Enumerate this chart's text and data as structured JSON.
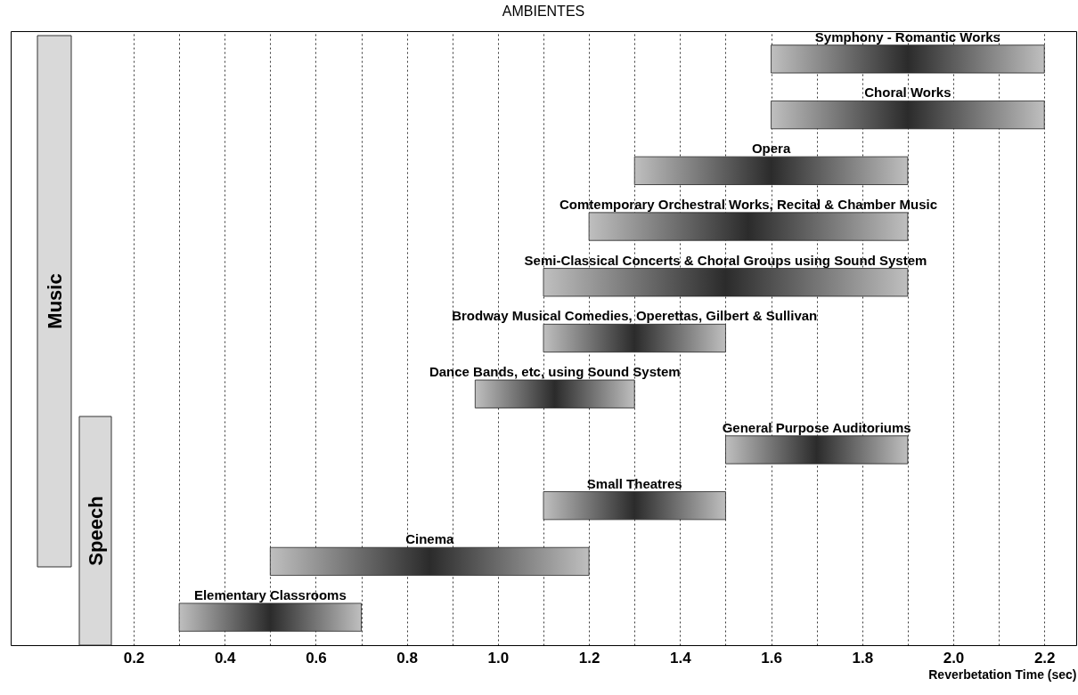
{
  "chart_data": {
    "type": "bar",
    "orientation": "horizontal",
    "title": "AMBIENTES",
    "xlabel": "Reverbetation Time (sec)",
    "categories": [
      "Symphony - Romantic Works",
      "Choral Works",
      "Opera",
      "Comtemporary Orchestral Works, Recital & Chamber Music",
      "Semi-Classical Concerts & Choral Groups using Sound System",
      "Brodway Musical Comedies, Operettas, Gilbert & Sullivan",
      "Dance Bands, etc, using Sound System",
      "General Purpose Auditoriums",
      "Small Theatres",
      "Cinema",
      "Elementary Classrooms"
    ],
    "base": [
      1.6,
      1.6,
      1.3,
      1.2,
      1.1,
      1.1,
      0.95,
      1.5,
      1.1,
      0.5,
      0.3
    ],
    "values": [
      0.6,
      0.6,
      0.6,
      0.7,
      0.8,
      0.4,
      0.35,
      0.4,
      0.4,
      0.7,
      0.4
    ],
    "color": "#2b2b2b",
    "xlim": [
      -0.07,
      2.27
    ],
    "xticks": [
      0.2,
      {
        "value": 0.3,
        "label": null
      },
      0.4,
      {
        "value": 0.5,
        "label": null
      },
      0.6,
      {
        "value": 0.7,
        "label": null
      },
      0.8,
      {
        "value": 0.9,
        "label": null
      },
      {
        "value": 1.0,
        "label": "1.0"
      },
      {
        "value": 1.1,
        "label": null
      },
      1.2,
      {
        "value": 1.3,
        "label": null
      },
      1.4,
      {
        "value": 1.5,
        "label": null
      },
      1.6,
      {
        "value": 1.7,
        "label": null
      },
      1.8,
      {
        "value": 1.9,
        "label": null
      },
      {
        "value": 2.0,
        "label": "2.0"
      },
      {
        "value": 2.1,
        "label": null
      },
      2.2
    ],
    "grid": "x",
    "tick_labels": "x",
    "annotations": [
      "Music",
      "Speech"
    ]
  }
}
